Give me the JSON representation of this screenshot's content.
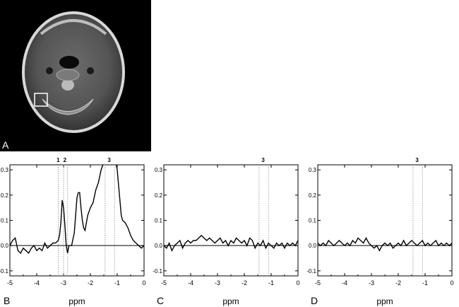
{
  "panel_labels": {
    "a": "A",
    "b": "B",
    "c": "C",
    "d": "D"
  },
  "mri": {
    "roi_box_color": "#ffffff"
  },
  "chart_data": [
    {
      "panel": "B",
      "type": "line",
      "xlabel": "ppm",
      "xlim": [
        -5,
        0
      ],
      "ylim": [
        -0.12,
        0.32
      ],
      "x_ticks": [
        "-5",
        "-4",
        "-3",
        "-2",
        "-1",
        "0"
      ],
      "y_ticks": [
        "-0.1",
        "0.0",
        "0.1",
        "0.2",
        "0.3"
      ],
      "baseline": 0,
      "peak_lines": [
        {
          "label": "1",
          "x": -3.2
        },
        {
          "label": "2",
          "x": -3.0
        },
        {
          "label": "",
          "x": -2.85
        },
        {
          "label": "3",
          "x": -1.45
        },
        {
          "label": "",
          "x": -1.1
        }
      ],
      "peak_labels": [
        {
          "text": "1",
          "x": -3.2
        },
        {
          "text": "2",
          "x": -2.95
        },
        {
          "text": "3",
          "x": -1.3
        }
      ],
      "spectrum": {
        "x": [
          -5.0,
          -4.9,
          -4.8,
          -4.7,
          -4.6,
          -4.5,
          -4.4,
          -4.3,
          -4.2,
          -4.1,
          -4.0,
          -3.9,
          -3.8,
          -3.7,
          -3.6,
          -3.5,
          -3.4,
          -3.3,
          -3.2,
          -3.15,
          -3.1,
          -3.05,
          -3.0,
          -2.95,
          -2.9,
          -2.85,
          -2.8,
          -2.7,
          -2.6,
          -2.5,
          -2.45,
          -2.4,
          -2.35,
          -2.3,
          -2.25,
          -2.2,
          -2.1,
          -2.0,
          -1.9,
          -1.8,
          -1.7,
          -1.6,
          -1.5,
          -1.4,
          -1.3,
          -1.2,
          -1.15,
          -1.1,
          -1.05,
          -1.0,
          -0.95,
          -0.9,
          -0.85,
          -0.8,
          -0.7,
          -0.6,
          -0.5,
          -0.4,
          -0.3,
          -0.2,
          -0.1,
          0.0
        ],
        "y": [
          0.0,
          0.02,
          0.03,
          -0.02,
          -0.03,
          -0.01,
          -0.02,
          -0.03,
          -0.01,
          0.0,
          -0.02,
          -0.01,
          -0.02,
          0.01,
          -0.01,
          0.0,
          0.01,
          0.01,
          0.02,
          0.04,
          0.09,
          0.18,
          0.15,
          0.08,
          0.0,
          -0.03,
          0.0,
          0.0,
          0.05,
          0.19,
          0.21,
          0.21,
          0.15,
          0.1,
          0.07,
          0.06,
          0.12,
          0.15,
          0.17,
          0.22,
          0.25,
          0.3,
          0.33,
          0.33,
          0.33,
          0.33,
          0.33,
          0.33,
          0.33,
          0.3,
          0.24,
          0.18,
          0.12,
          0.1,
          0.09,
          0.07,
          0.04,
          0.02,
          0.01,
          0.0,
          -0.01,
          0.0
        ]
      }
    },
    {
      "panel": "C",
      "type": "line",
      "xlabel": "ppm",
      "xlim": [
        -5,
        0
      ],
      "ylim": [
        -0.12,
        0.32
      ],
      "x_ticks": [
        "-5",
        "-4",
        "-3",
        "-2",
        "-1",
        "0"
      ],
      "y_ticks": [
        "-0.1",
        "0.0",
        "0.1",
        "0.2",
        "0.3"
      ],
      "baseline": 0,
      "peak_lines": [
        {
          "label": "",
          "x": -1.45
        },
        {
          "label": "",
          "x": -1.1
        }
      ],
      "peak_labels": [
        {
          "text": "3",
          "x": -1.3
        }
      ],
      "spectrum": {
        "x": [
          -5.0,
          -4.9,
          -4.8,
          -4.7,
          -4.6,
          -4.5,
          -4.4,
          -4.3,
          -4.2,
          -4.1,
          -4.0,
          -3.9,
          -3.8,
          -3.7,
          -3.6,
          -3.5,
          -3.4,
          -3.3,
          -3.2,
          -3.1,
          -3.0,
          -2.9,
          -2.8,
          -2.7,
          -2.6,
          -2.5,
          -2.4,
          -2.3,
          -2.2,
          -2.1,
          -2.0,
          -1.9,
          -1.8,
          -1.7,
          -1.6,
          -1.5,
          -1.4,
          -1.3,
          -1.2,
          -1.1,
          -1.0,
          -0.9,
          -0.8,
          -0.7,
          -0.6,
          -0.5,
          -0.4,
          -0.3,
          -0.2,
          -0.1,
          0.0
        ],
        "y": [
          0.0,
          -0.01,
          0.01,
          -0.02,
          0.0,
          0.01,
          0.02,
          -0.01,
          0.01,
          0.02,
          0.01,
          0.02,
          0.02,
          0.03,
          0.04,
          0.03,
          0.02,
          0.03,
          0.02,
          0.01,
          0.02,
          0.03,
          0.01,
          0.02,
          0.0,
          0.02,
          0.01,
          0.03,
          0.02,
          0.01,
          0.02,
          0.0,
          0.03,
          0.02,
          -0.01,
          0.01,
          0.0,
          0.02,
          -0.01,
          0.01,
          0.0,
          -0.01,
          0.01,
          0.0,
          0.01,
          -0.01,
          0.01,
          0.0,
          0.01,
          0.0,
          0.02
        ]
      }
    },
    {
      "panel": "D",
      "type": "line",
      "xlabel": "ppm",
      "xlim": [
        -5,
        0
      ],
      "ylim": [
        -0.12,
        0.32
      ],
      "x_ticks": [
        "-5",
        "-4",
        "-3",
        "-2",
        "-1",
        "0"
      ],
      "y_ticks": [
        "-0.1",
        "0.0",
        "0.1",
        "0.2",
        "0.3"
      ],
      "baseline": 0,
      "peak_lines": [
        {
          "label": "",
          "x": -1.45
        },
        {
          "label": "",
          "x": -1.1
        }
      ],
      "peak_labels": [
        {
          "text": "3",
          "x": -1.3
        }
      ],
      "spectrum": {
        "x": [
          -5.0,
          -4.9,
          -4.8,
          -4.7,
          -4.6,
          -4.5,
          -4.4,
          -4.3,
          -4.2,
          -4.1,
          -4.0,
          -3.9,
          -3.8,
          -3.7,
          -3.6,
          -3.5,
          -3.4,
          -3.3,
          -3.2,
          -3.1,
          -3.0,
          -2.9,
          -2.8,
          -2.7,
          -2.6,
          -2.5,
          -2.4,
          -2.3,
          -2.2,
          -2.1,
          -2.0,
          -1.9,
          -1.8,
          -1.7,
          -1.6,
          -1.5,
          -1.4,
          -1.3,
          -1.2,
          -1.1,
          -1.0,
          -0.9,
          -0.8,
          -0.7,
          -0.6,
          -0.5,
          -0.4,
          -0.3,
          -0.2,
          -0.1,
          0.0
        ],
        "y": [
          0.01,
          0.0,
          0.01,
          0.0,
          0.02,
          0.01,
          0.0,
          0.01,
          0.02,
          0.01,
          0.0,
          0.01,
          0.0,
          0.02,
          0.01,
          0.03,
          0.02,
          0.01,
          0.03,
          0.01,
          0.0,
          -0.01,
          0.0,
          -0.02,
          0.0,
          0.01,
          0.0,
          0.01,
          -0.01,
          0.0,
          0.01,
          0.0,
          0.02,
          0.0,
          0.01,
          0.02,
          0.01,
          0.0,
          0.01,
          0.02,
          0.0,
          0.01,
          0.0,
          0.01,
          0.02,
          0.0,
          0.01,
          0.0,
          0.01,
          0.0,
          0.01
        ]
      }
    }
  ]
}
